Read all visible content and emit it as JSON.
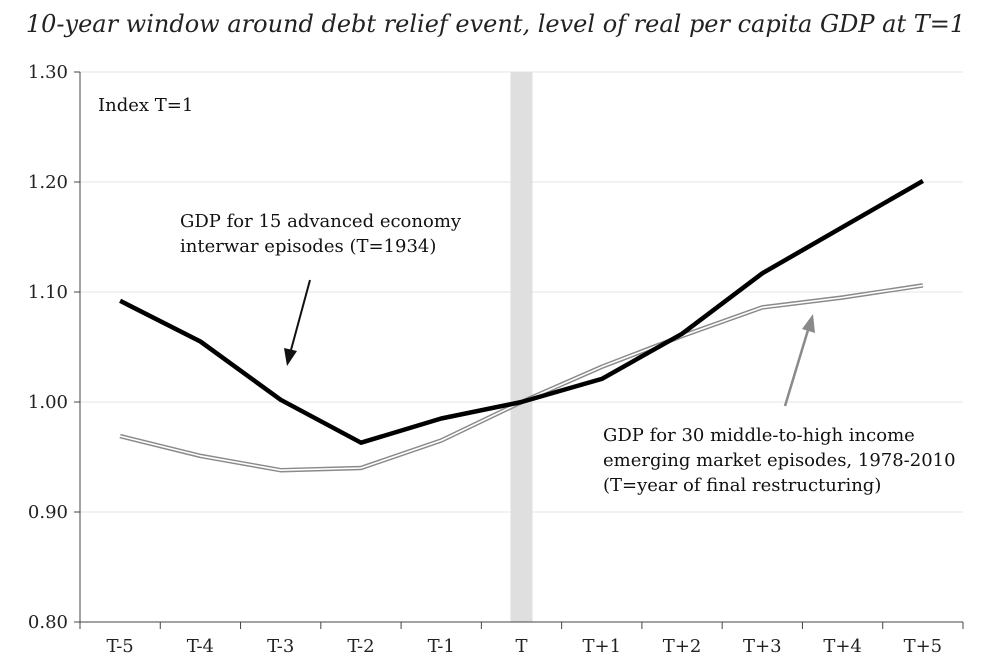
{
  "chart_data": {
    "type": "line",
    "title": "10-year window around debt relief event, level of real per capita GDP at T=1",
    "categories": [
      "T-5",
      "T-4",
      "T-3",
      "T-2",
      "T-1",
      "T",
      "T+1",
      "T+2",
      "T+3",
      "T+4",
      "T+5"
    ],
    "ylim": [
      0.8,
      1.3
    ],
    "yticks": [
      "0.80",
      "0.90",
      "1.00",
      "1.10",
      "1.20",
      "1.30"
    ],
    "grid": true,
    "legend": "none",
    "index_label": "Index T=1",
    "series": [
      {
        "name": "GDP for 15 advanced economy interwar episodes (T=1934)",
        "style": "thick-black",
        "values": [
          1.092,
          1.055,
          1.002,
          0.963,
          0.985,
          1.0,
          1.021,
          1.062,
          1.117,
          1.159,
          1.201
        ]
      },
      {
        "name": "GDP for 30 middle-to-high income emerging market episodes, 1978-2010 (T=year of final restructuring)",
        "style": "double-gray",
        "values": [
          0.969,
          0.951,
          0.938,
          0.94,
          0.965,
          1.0,
          1.032,
          1.06,
          1.086,
          1.095,
          1.106
        ]
      }
    ],
    "annotations": [
      {
        "lines": [
          "GDP for 15 advanced economy",
          "interwar episodes (T=1934)"
        ]
      },
      {
        "lines": [
          "GDP for 30 middle-to-high income",
          "emerging market episodes, 1978-2010",
          "(T=year of final restructuring)"
        ]
      }
    ],
    "highlight_category": "T"
  },
  "colors": {
    "series1": "#000000",
    "series2_outer": "#8a8a8a",
    "series2_inner": "#ffffff",
    "highlight_band": "#d9d9d9",
    "arrow1": "#111111",
    "arrow2": "#8a8a8a"
  }
}
